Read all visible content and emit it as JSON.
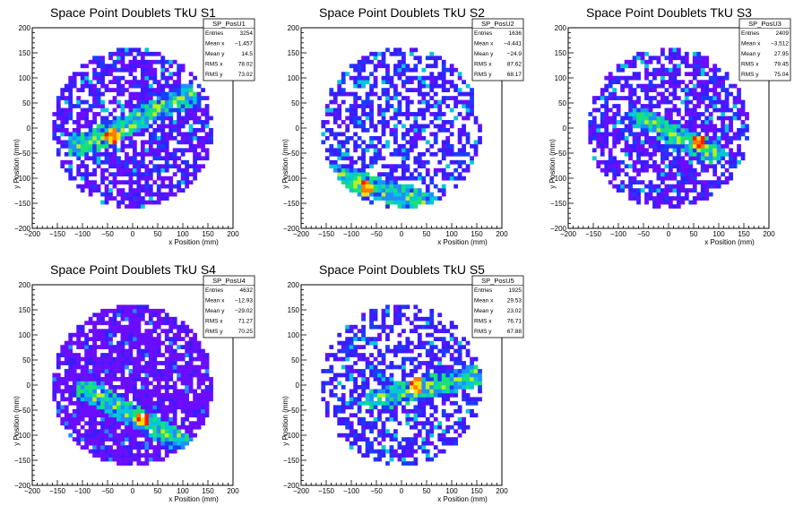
{
  "chart_data": [
    {
      "type": "heatmap",
      "title": "Space Point Doublets TkU S1",
      "xlabel": "x Position (mm)",
      "ylabel": "y Position (mm)",
      "xlim": [
        -200,
        200
      ],
      "ylim": [
        -200,
        200
      ],
      "x_ticks": [
        "−200",
        "−150",
        "−100",
        "−50",
        "0",
        "50",
        "100",
        "150",
        "200"
      ],
      "y_ticks": [
        "−200",
        "−150",
        "−100",
        "−50",
        "0",
        "50",
        "100",
        "150",
        "200"
      ],
      "stats": {
        "name": "SP_PosU1",
        "rows": [
          [
            "Entries",
            "3254"
          ],
          [
            "Mean x",
            "−1.457"
          ],
          [
            "Mean y",
            "14.5"
          ],
          [
            "RMS x",
            "78.02"
          ],
          [
            "RMS y",
            "73.02"
          ]
        ]
      },
      "hot_band": {
        "x1": -110,
        "y1": -40,
        "x2": 110,
        "y2": 65,
        "peak": [
          -40,
          -15
        ]
      },
      "fill_level": "medium"
    },
    {
      "type": "heatmap",
      "title": "Space Point Doublets TkU S2",
      "xlabel": "x Position (mm)",
      "ylabel": "y Position (mm)",
      "xlim": [
        -200,
        200
      ],
      "ylim": [
        -200,
        200
      ],
      "x_ticks": [
        "−200",
        "−150",
        "−100",
        "−50",
        "0",
        "50",
        "100",
        "150",
        "200"
      ],
      "y_ticks": [
        "−200",
        "−150",
        "−100",
        "−50",
        "0",
        "50",
        "100",
        "150",
        "200"
      ],
      "stats": {
        "name": "SP_PosU2",
        "rows": [
          [
            "Entries",
            "1636"
          ],
          [
            "Mean x",
            "−4.441"
          ],
          [
            "Mean y",
            "−24.9"
          ],
          [
            "RMS x",
            "87.62"
          ],
          [
            "RMS y",
            "68.17"
          ]
        ]
      },
      "hot_band": {
        "x1": -130,
        "y1": -95,
        "x2": 50,
        "y2": -150,
        "peak": [
          -70,
          -120
        ]
      },
      "fill_level": "sparse"
    },
    {
      "type": "heatmap",
      "title": "Space Point Doublets TkU S3",
      "xlabel": "x Position (mm)",
      "ylabel": "y Position (mm)",
      "xlim": [
        -200,
        200
      ],
      "ylim": [
        -200,
        200
      ],
      "x_ticks": [
        "−200",
        "−150",
        "−100",
        "−50",
        "0",
        "50",
        "100",
        "150",
        "200"
      ],
      "y_ticks": [
        "−200",
        "−150",
        "−100",
        "−50",
        "0",
        "50",
        "100",
        "150",
        "200"
      ],
      "stats": {
        "name": "SP_PosU3",
        "rows": [
          [
            "Entries",
            "2409"
          ],
          [
            "Mean x",
            "−3.512"
          ],
          [
            "Mean y",
            "27.95"
          ],
          [
            "RMS x",
            "79.45"
          ],
          [
            "RMS y",
            "75.04"
          ]
        ]
      },
      "hot_band": {
        "x1": -60,
        "y1": 20,
        "x2": 90,
        "y2": -50,
        "peak": [
          60,
          -30
        ]
      },
      "fill_level": "medium"
    },
    {
      "type": "heatmap",
      "title": "Space Point Doublets TkU S4",
      "xlabel": "x Position (mm)",
      "ylabel": "y Position (mm)",
      "xlim": [
        -200,
        200
      ],
      "ylim": [
        -200,
        200
      ],
      "x_ticks": [
        "−200",
        "−150",
        "−100",
        "−50",
        "0",
        "50",
        "100",
        "150",
        "200"
      ],
      "y_ticks": [
        "−200",
        "−150",
        "−100",
        "−50",
        "0",
        "50",
        "100",
        "150",
        "200"
      ],
      "stats": {
        "name": "SP_PosU4",
        "rows": [
          [
            "Entries",
            "4632"
          ],
          [
            "Mean x",
            "−12.93"
          ],
          [
            "Mean y",
            "−29.02"
          ],
          [
            "RMS x",
            "71.27"
          ],
          [
            "RMS y",
            "70.25"
          ]
        ]
      },
      "hot_band": {
        "x1": -90,
        "y1": -10,
        "x2": 90,
        "y2": -110,
        "peak": [
          20,
          -70
        ]
      },
      "fill_level": "dense"
    },
    {
      "type": "heatmap",
      "title": "Space Point Doublets TkU S5",
      "xlabel": "x Position (mm)",
      "ylabel": "y Position (mm)",
      "xlim": [
        -200,
        200
      ],
      "ylim": [
        -200,
        200
      ],
      "x_ticks": [
        "−200",
        "−150",
        "−100",
        "−50",
        "0",
        "50",
        "100",
        "150",
        "200"
      ],
      "y_ticks": [
        "−200",
        "−150",
        "−100",
        "−50",
        "0",
        "50",
        "100",
        "150",
        "200"
      ],
      "stats": {
        "name": "SP_PosU5",
        "rows": [
          [
            "Entries",
            "1925"
          ],
          [
            "Mean x",
            "29.53"
          ],
          [
            "Mean y",
            "23.02"
          ],
          [
            "RMS x",
            "76.71"
          ],
          [
            "RMS y",
            "67.88"
          ]
        ]
      },
      "hot_band": {
        "x1": -50,
        "y1": -30,
        "x2": 150,
        "y2": 20,
        "peak": [
          30,
          0
        ]
      },
      "fill_level": "sparse"
    }
  ],
  "colors": {
    "palette": [
      "#6a0dff",
      "#3a1cff",
      "#1a3cff",
      "#1f8fff",
      "#00c8d8",
      "#18e07a",
      "#b8f020",
      "#ffe000",
      "#ff7a00",
      "#ff1a00"
    ],
    "background": "#ffffff",
    "axis": "#000000"
  }
}
